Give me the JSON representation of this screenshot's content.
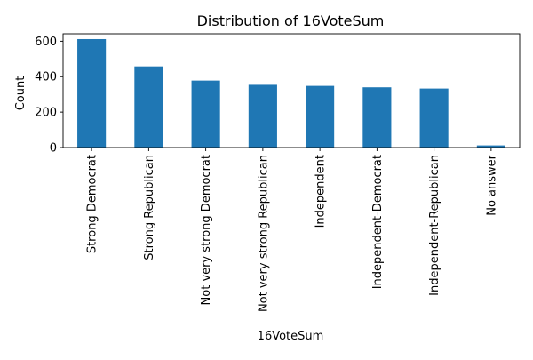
{
  "chart_data": {
    "type": "bar",
    "title": "Distribution of 16VoteSum",
    "xlabel": "16VoteSum",
    "ylabel": "Count",
    "categories": [
      "Strong Democrat",
      "Strong Republican",
      "Not very strong Democrat",
      "Not very strong Republican",
      "Independent",
      "Independent-Democrat",
      "Independent-Republican",
      "No answer"
    ],
    "values": [
      612,
      458,
      378,
      354,
      348,
      340,
      333,
      12
    ],
    "ylim": [
      0,
      642
    ],
    "yticks": [
      0,
      200,
      400,
      600
    ],
    "ytick_labels": [
      "0",
      "200",
      "400",
      "600"
    ],
    "bar_color": "#1f77b4",
    "grid": false,
    "legend": false
  }
}
